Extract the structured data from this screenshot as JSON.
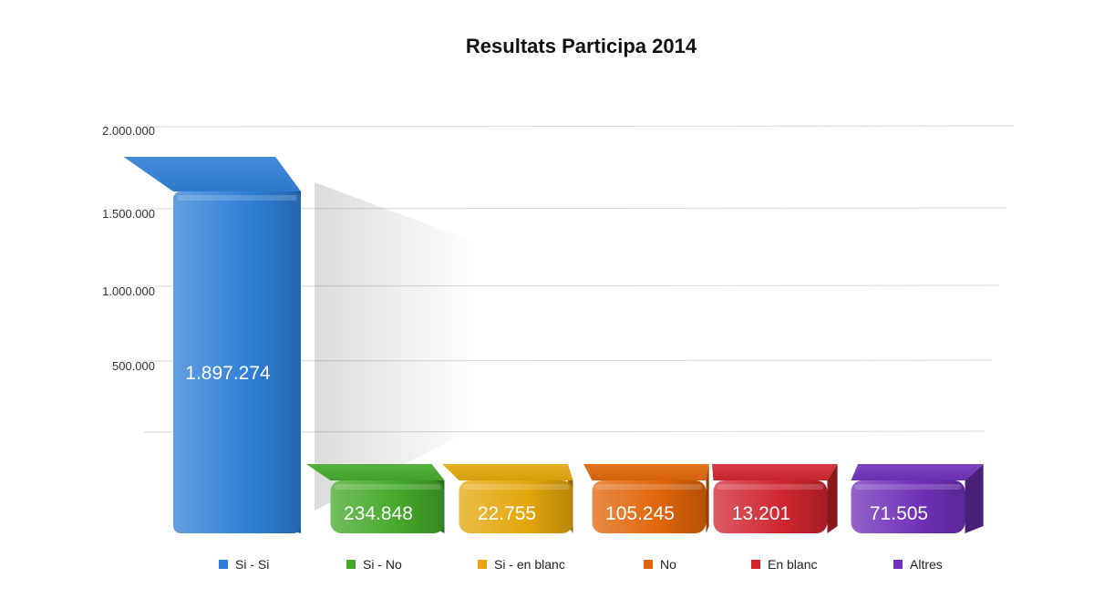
{
  "chart_data": {
    "type": "bar",
    "title": "Resultats Participa 2014",
    "xlabel": "",
    "ylabel": "",
    "ylim": [
      0,
      2000000
    ],
    "y_ticks": [
      "500.000",
      "1.000.000",
      "1.500.000",
      "2.000.000"
    ],
    "grid": true,
    "legend_position": "bottom",
    "categories": [
      "Si - Si",
      "Si - No",
      "Si - en blanc",
      "No",
      "En blanc",
      "Altres"
    ],
    "values": [
      1897274,
      234848,
      22755,
      105245,
      13201,
      71505
    ],
    "value_labels": [
      "1.897.274",
      "234.848",
      "22.755",
      "105.245",
      "13.201",
      "71.505"
    ],
    "colors": [
      "#2f7fd6",
      "#45a82a",
      "#e3a60c",
      "#e0650a",
      "#cf2630",
      "#7030b8"
    ]
  }
}
